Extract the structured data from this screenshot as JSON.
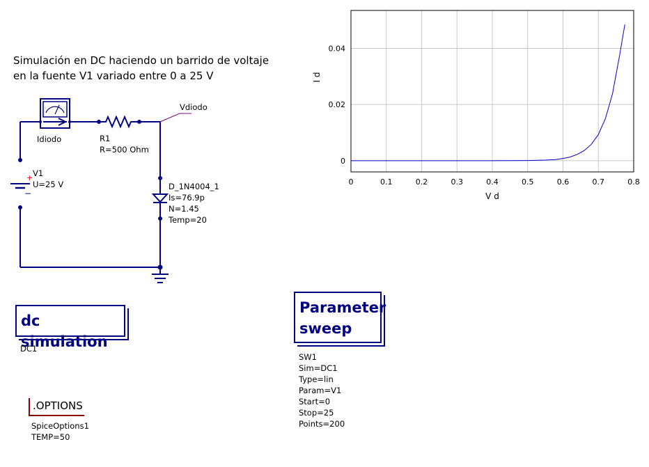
{
  "note": {
    "line1": "Simulación en DC haciendo un barrido de voltaje",
    "line2": "en la fuente V1 variado entre 0 a 25 V"
  },
  "colors": {
    "wire": "#000080",
    "component": "#000080",
    "probe_wire": "#800080",
    "source_plus": "#ff0000",
    "options_mark": "#8b0000",
    "curve": "#0000cc",
    "grid": "#c8c8c8"
  },
  "components": {
    "ammeter": {
      "name": "Idiodo"
    },
    "resistor": {
      "name": "R1",
      "value": "R=500 Ohm"
    },
    "source": {
      "name": "V1",
      "value": "U=25 V",
      "plus": "+",
      "minus": "−"
    },
    "diode": {
      "name": "D_1N4004_1",
      "params": [
        "Is=76.9p",
        "N=1.45",
        "Temp=20"
      ]
    },
    "node_label": "Vdiodo"
  },
  "dc_sim": {
    "title": "dc simulation",
    "name": "DC1"
  },
  "param_sweep": {
    "title_line1": "Parameter",
    "title_line2": "sweep",
    "props": [
      "SW1",
      "Sim=DC1",
      "Type=lin",
      "Param=V1",
      "Start=0",
      "Stop=25",
      "Points=200"
    ]
  },
  "options": {
    "title": ".OPTIONS",
    "props": [
      "SpiceOptions1",
      "TEMP=50"
    ]
  },
  "chart_data": {
    "type": "line",
    "title": "",
    "xlabel": "V d",
    "ylabel": "I d",
    "xlim": [
      0,
      0.8
    ],
    "ylim": [
      -0.004,
      0.0535
    ],
    "xticks": [
      0,
      0.1,
      0.2,
      0.3,
      0.4,
      0.5,
      0.6,
      0.7,
      0.8
    ],
    "xtick_labels": [
      "0",
      "0.1",
      "0.2",
      "0.3",
      "0.4",
      "0.5",
      "0.6",
      "0.7",
      "0.8"
    ],
    "yticks": [
      0,
      0.02,
      0.04
    ],
    "ytick_labels": [
      "0",
      "0.02",
      "0.04"
    ],
    "grid": true,
    "series": [
      {
        "x": [
          0,
          0.1,
          0.2,
          0.3,
          0.4,
          0.5,
          0.55,
          0.58,
          0.6,
          0.62,
          0.64,
          0.66,
          0.68,
          0.7,
          0.72,
          0.74,
          0.76,
          0.775
        ],
        "y": [
          0,
          0,
          0,
          0,
          0,
          5e-05,
          0.0002,
          0.0004,
          0.0008,
          0.0013,
          0.0022,
          0.0036,
          0.0058,
          0.0093,
          0.015,
          0.0238,
          0.0374,
          0.0485
        ]
      }
    ]
  }
}
